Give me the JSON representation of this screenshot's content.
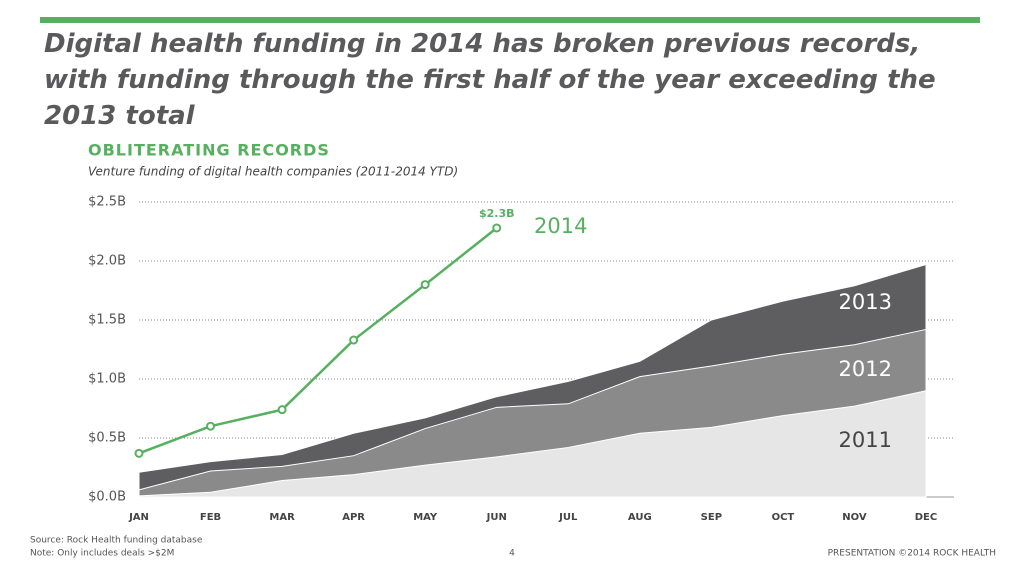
{
  "header": {
    "title": "Digital health funding in 2014 has broken previous records, with funding through the first half of the year exceeding the 2013 total"
  },
  "chart_data": {
    "type": "area",
    "title": "OBLITERATING RECORDS",
    "subtitle": "Venture funding of digital health companies (2011-2014 YTD)",
    "categories": [
      "JAN",
      "FEB",
      "MAR",
      "APR",
      "MAY",
      "JUN",
      "JUL",
      "AUG",
      "SEP",
      "OCT",
      "NOV",
      "DEC"
    ],
    "ylim": [
      0,
      2.5
    ],
    "yticks": [
      {
        "value": 0,
        "label": "$0.0B"
      },
      {
        "value": 0.5,
        "label": "$0.5B"
      },
      {
        "value": 1,
        "label": "$1.0B"
      },
      {
        "value": 1.5,
        "label": "$1.5B"
      },
      {
        "value": 2,
        "label": "$2.0B"
      },
      {
        "value": 2.5,
        "label": "$2.5B"
      }
    ],
    "grid": true,
    "series": [
      {
        "name": "2011",
        "color": "#e6e6e7",
        "values": [
          0.01,
          0.04,
          0.14,
          0.19,
          0.27,
          0.34,
          0.42,
          0.54,
          0.59,
          0.69,
          0.77,
          0.9
        ]
      },
      {
        "name": "2012",
        "color": "#8a8a8b",
        "values": [
          0.06,
          0.22,
          0.26,
          0.35,
          0.58,
          0.76,
          0.79,
          1.02,
          1.11,
          1.21,
          1.29,
          1.42
        ]
      },
      {
        "name": "2013",
        "color": "#5e5e60",
        "values": [
          0.21,
          0.3,
          0.36,
          0.54,
          0.67,
          0.85,
          0.98,
          1.15,
          1.5,
          1.66,
          1.79,
          1.97
        ]
      },
      {
        "name": "2014",
        "color": "#56b05f",
        "style": "line",
        "values": [
          0.37,
          0.6,
          0.74,
          1.33,
          1.8,
          2.28,
          null,
          null,
          null,
          null,
          null,
          null
        ],
        "value_labels": [
          null,
          null,
          null,
          null,
          null,
          "$2.3B",
          null,
          null,
          null,
          null,
          null,
          null
        ]
      }
    ]
  },
  "footer": {
    "source": "Source: Rock Health funding database",
    "note": "Note: Only includes deals >$2M",
    "page": "4",
    "brand": "PRESENTATION ©2014 ROCK HEALTH"
  }
}
